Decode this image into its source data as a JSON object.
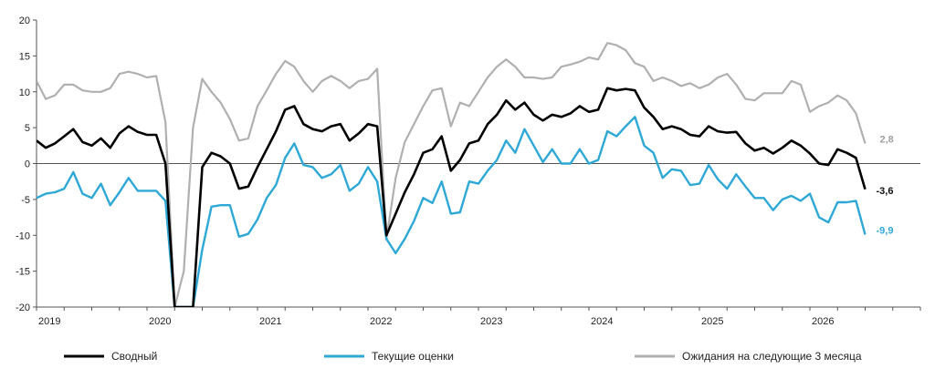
{
  "chart_data": {
    "type": "line",
    "title": "",
    "xlabel": "",
    "ylabel": "",
    "ylim": [
      -20,
      20
    ],
    "xlim": [
      "2019-01",
      "2026-12"
    ],
    "y_ticks": [
      "20",
      "15",
      "10",
      "5",
      "0",
      "-5",
      "-10",
      "-15",
      "-20"
    ],
    "x_ticks": [
      "2019",
      "2020",
      "2021",
      "2022",
      "2023",
      "2024",
      "2025",
      "2026"
    ],
    "grid": false,
    "legend_position": "bottom",
    "series": [
      {
        "name": "Сводный",
        "color": "#000000",
        "end_label": "-3,6",
        "points": [
          [
            "2019-01",
            3.2
          ],
          [
            "2019-02",
            2.2
          ],
          [
            "2019-03",
            2.8
          ],
          [
            "2019-04",
            3.8
          ],
          [
            "2019-05",
            4.8
          ],
          [
            "2019-06",
            3.0
          ],
          [
            "2019-07",
            2.5
          ],
          [
            "2019-08",
            3.5
          ],
          [
            "2019-09",
            2.2
          ],
          [
            "2019-10",
            4.2
          ],
          [
            "2019-11",
            5.2
          ],
          [
            "2019-12",
            4.4
          ],
          [
            "2020-01",
            4.0
          ],
          [
            "2020-02",
            4.0
          ],
          [
            "2020-03",
            0.0
          ],
          [
            "2020-04",
            -20
          ],
          [
            "2020-05",
            -20
          ],
          [
            "2020-06",
            -20
          ],
          [
            "2020-07",
            -0.5
          ],
          [
            "2020-08",
            1.5
          ],
          [
            "2020-09",
            1.0
          ],
          [
            "2020-10",
            0.0
          ],
          [
            "2020-11",
            -3.5
          ],
          [
            "2020-12",
            -3.2
          ],
          [
            "2021-01",
            -0.5
          ],
          [
            "2021-02",
            2.0
          ],
          [
            "2021-03",
            4.5
          ],
          [
            "2021-04",
            7.5
          ],
          [
            "2021-05",
            8.0
          ],
          [
            "2021-06",
            5.5
          ],
          [
            "2021-07",
            4.8
          ],
          [
            "2021-08",
            4.5
          ],
          [
            "2021-09",
            5.2
          ],
          [
            "2021-10",
            5.5
          ],
          [
            "2021-11",
            3.2
          ],
          [
            "2021-12",
            4.2
          ],
          [
            "2022-01",
            5.5
          ],
          [
            "2022-02",
            5.2
          ],
          [
            "2022-03",
            -10.0
          ],
          [
            "2022-04",
            -7.0
          ],
          [
            "2022-05",
            -4.0
          ],
          [
            "2022-06",
            -1.5
          ],
          [
            "2022-07",
            1.5
          ],
          [
            "2022-08",
            2.0
          ],
          [
            "2022-09",
            3.8
          ],
          [
            "2022-10",
            -1.0
          ],
          [
            "2022-11",
            0.5
          ],
          [
            "2022-12",
            2.8
          ],
          [
            "2023-01",
            3.2
          ],
          [
            "2023-02",
            5.5
          ],
          [
            "2023-03",
            6.8
          ],
          [
            "2023-04",
            8.8
          ],
          [
            "2023-05",
            7.5
          ],
          [
            "2023-06",
            8.5
          ],
          [
            "2023-07",
            6.8
          ],
          [
            "2023-08",
            6.0
          ],
          [
            "2023-09",
            6.8
          ],
          [
            "2023-10",
            6.5
          ],
          [
            "2023-11",
            7.0
          ],
          [
            "2023-12",
            8.0
          ],
          [
            "2024-01",
            7.2
          ],
          [
            "2024-02",
            7.5
          ],
          [
            "2024-03",
            10.5
          ],
          [
            "2024-04",
            10.2
          ],
          [
            "2024-05",
            10.4
          ],
          [
            "2024-06",
            10.2
          ],
          [
            "2024-07",
            7.8
          ],
          [
            "2024-08",
            6.5
          ],
          [
            "2024-09",
            4.8
          ],
          [
            "2024-10",
            5.2
          ],
          [
            "2024-11",
            4.8
          ],
          [
            "2024-12",
            4.0
          ],
          [
            "2025-01",
            3.8
          ],
          [
            "2025-02",
            5.2
          ],
          [
            "2025-03",
            4.5
          ],
          [
            "2025-04",
            4.3
          ],
          [
            "2025-05",
            4.4
          ],
          [
            "2025-06",
            2.8
          ],
          [
            "2025-07",
            1.8
          ],
          [
            "2025-08",
            2.2
          ],
          [
            "2025-09",
            1.4
          ],
          [
            "2025-10",
            2.2
          ],
          [
            "2025-11",
            3.2
          ],
          [
            "2025-12",
            2.5
          ],
          [
            "2026-01",
            1.4
          ],
          [
            "2026-02",
            0.0
          ],
          [
            "2026-03",
            -0.2
          ],
          [
            "2026-04",
            2.0
          ],
          [
            "2026-05",
            1.5
          ],
          [
            "2026-06",
            0.8
          ],
          [
            "2026-07",
            -3.6
          ]
        ]
      },
      {
        "name": "Текущие оценки",
        "color": "#2ea8d6",
        "end_label": "-9,9",
        "points": [
          [
            "2019-01",
            -4.8
          ],
          [
            "2019-02",
            -4.2
          ],
          [
            "2019-03",
            -4.0
          ],
          [
            "2019-04",
            -3.5
          ],
          [
            "2019-05",
            -1.2
          ],
          [
            "2019-06",
            -4.2
          ],
          [
            "2019-07",
            -4.8
          ],
          [
            "2019-08",
            -2.8
          ],
          [
            "2019-09",
            -5.8
          ],
          [
            "2019-10",
            -4.0
          ],
          [
            "2019-11",
            -2.0
          ],
          [
            "2019-12",
            -3.8
          ],
          [
            "2020-01",
            -3.8
          ],
          [
            "2020-02",
            -3.8
          ],
          [
            "2020-03",
            -5.2
          ],
          [
            "2020-04",
            -20
          ],
          [
            "2020-05",
            -20
          ],
          [
            "2020-06",
            -20
          ],
          [
            "2020-07",
            -12.0
          ],
          [
            "2020-08",
            -6.0
          ],
          [
            "2020-09",
            -5.8
          ],
          [
            "2020-10",
            -5.8
          ],
          [
            "2020-11",
            -10.2
          ],
          [
            "2020-12",
            -9.8
          ],
          [
            "2021-01",
            -7.8
          ],
          [
            "2021-02",
            -4.8
          ],
          [
            "2021-03",
            -3.0
          ],
          [
            "2021-04",
            0.8
          ],
          [
            "2021-05",
            2.8
          ],
          [
            "2021-06",
            -0.2
          ],
          [
            "2021-07",
            -0.5
          ],
          [
            "2021-08",
            -2.0
          ],
          [
            "2021-09",
            -1.5
          ],
          [
            "2021-10",
            -0.2
          ],
          [
            "2021-11",
            -3.8
          ],
          [
            "2021-12",
            -2.8
          ],
          [
            "2022-01",
            -0.5
          ],
          [
            "2022-02",
            -2.5
          ],
          [
            "2022-03",
            -10.5
          ],
          [
            "2022-04",
            -12.5
          ],
          [
            "2022-05",
            -10.5
          ],
          [
            "2022-06",
            -8.0
          ],
          [
            "2022-07",
            -4.8
          ],
          [
            "2022-08",
            -5.5
          ],
          [
            "2022-09",
            -2.5
          ],
          [
            "2022-10",
            -7.0
          ],
          [
            "2022-11",
            -6.8
          ],
          [
            "2022-12",
            -2.5
          ],
          [
            "2023-01",
            -2.8
          ],
          [
            "2023-02",
            -1.0
          ],
          [
            "2023-03",
            0.5
          ],
          [
            "2023-04",
            3.2
          ],
          [
            "2023-05",
            1.5
          ],
          [
            "2023-06",
            4.8
          ],
          [
            "2023-07",
            2.5
          ],
          [
            "2023-08",
            0.2
          ],
          [
            "2023-09",
            2.0
          ],
          [
            "2023-10",
            0.0
          ],
          [
            "2023-11",
            0.0
          ],
          [
            "2023-12",
            2.0
          ],
          [
            "2024-01",
            0.0
          ],
          [
            "2024-02",
            0.5
          ],
          [
            "2024-03",
            4.5
          ],
          [
            "2024-04",
            3.8
          ],
          [
            "2024-05",
            5.2
          ],
          [
            "2024-06",
            6.5
          ],
          [
            "2024-07",
            2.5
          ],
          [
            "2024-08",
            1.5
          ],
          [
            "2024-09",
            -2.0
          ],
          [
            "2024-10",
            -0.8
          ],
          [
            "2024-11",
            -1.0
          ],
          [
            "2024-12",
            -3.0
          ],
          [
            "2025-01",
            -2.8
          ],
          [
            "2025-02",
            -0.2
          ],
          [
            "2025-03",
            -2.2
          ],
          [
            "2025-04",
            -3.5
          ],
          [
            "2025-05",
            -1.5
          ],
          [
            "2025-06",
            -3.2
          ],
          [
            "2025-07",
            -4.8
          ],
          [
            "2025-08",
            -4.8
          ],
          [
            "2025-09",
            -6.5
          ],
          [
            "2025-10",
            -5.0
          ],
          [
            "2025-11",
            -4.5
          ],
          [
            "2025-12",
            -5.2
          ],
          [
            "2026-01",
            -4.2
          ],
          [
            "2026-02",
            -7.5
          ],
          [
            "2026-03",
            -8.2
          ],
          [
            "2026-04",
            -5.4
          ],
          [
            "2026-05",
            -5.4
          ],
          [
            "2026-06",
            -5.2
          ],
          [
            "2026-07",
            -9.9
          ]
        ]
      },
      {
        "name": "Ожидания на следующие 3 месяца",
        "color": "#b0b0b0",
        "end_label": "2,8",
        "points": [
          [
            "2019-01",
            11.5
          ],
          [
            "2019-02",
            9.0
          ],
          [
            "2019-03",
            9.5
          ],
          [
            "2019-04",
            11.0
          ],
          [
            "2019-05",
            11.0
          ],
          [
            "2019-06",
            10.2
          ],
          [
            "2019-07",
            10.0
          ],
          [
            "2019-08",
            10.0
          ],
          [
            "2019-09",
            10.5
          ],
          [
            "2019-10",
            12.5
          ],
          [
            "2019-11",
            12.8
          ],
          [
            "2019-12",
            12.5
          ],
          [
            "2020-01",
            12.0
          ],
          [
            "2020-02",
            12.2
          ],
          [
            "2020-03",
            5.8
          ],
          [
            "2020-04",
            -20
          ],
          [
            "2020-05",
            -15.0
          ],
          [
            "2020-06",
            5.0
          ],
          [
            "2020-07",
            11.8
          ],
          [
            "2020-08",
            10.0
          ],
          [
            "2020-09",
            8.5
          ],
          [
            "2020-10",
            6.2
          ],
          [
            "2020-11",
            3.2
          ],
          [
            "2020-12",
            3.5
          ],
          [
            "2021-01",
            8.0
          ],
          [
            "2021-02",
            10.2
          ],
          [
            "2021-03",
            12.5
          ],
          [
            "2021-04",
            14.3
          ],
          [
            "2021-05",
            13.5
          ],
          [
            "2021-06",
            11.5
          ],
          [
            "2021-07",
            10.0
          ],
          [
            "2021-08",
            11.5
          ],
          [
            "2021-09",
            12.2
          ],
          [
            "2021-10",
            11.5
          ],
          [
            "2021-11",
            10.5
          ],
          [
            "2021-12",
            11.5
          ],
          [
            "2022-01",
            11.8
          ],
          [
            "2022-02",
            13.2
          ],
          [
            "2022-03",
            -10.5
          ],
          [
            "2022-04",
            -2.0
          ],
          [
            "2022-05",
            3.0
          ],
          [
            "2022-06",
            5.5
          ],
          [
            "2022-07",
            8.0
          ],
          [
            "2022-08",
            10.2
          ],
          [
            "2022-09",
            10.5
          ],
          [
            "2022-10",
            5.2
          ],
          [
            "2022-11",
            8.5
          ],
          [
            "2022-12",
            8.0
          ],
          [
            "2023-01",
            10.0
          ],
          [
            "2023-02",
            12.0
          ],
          [
            "2023-03",
            13.5
          ],
          [
            "2023-04",
            14.5
          ],
          [
            "2023-05",
            13.5
          ],
          [
            "2023-06",
            12.0
          ],
          [
            "2023-07",
            12.0
          ],
          [
            "2023-08",
            11.8
          ],
          [
            "2023-09",
            12.0
          ],
          [
            "2023-10",
            13.5
          ],
          [
            "2023-11",
            13.8
          ],
          [
            "2023-12",
            14.2
          ],
          [
            "2024-01",
            14.8
          ],
          [
            "2024-02",
            14.5
          ],
          [
            "2024-03",
            16.8
          ],
          [
            "2024-04",
            16.5
          ],
          [
            "2024-05",
            15.8
          ],
          [
            "2024-06",
            14.0
          ],
          [
            "2024-07",
            13.5
          ],
          [
            "2024-08",
            11.5
          ],
          [
            "2024-09",
            12.0
          ],
          [
            "2024-10",
            11.5
          ],
          [
            "2024-11",
            10.8
          ],
          [
            "2024-12",
            11.2
          ],
          [
            "2025-01",
            10.5
          ],
          [
            "2025-02",
            11.0
          ],
          [
            "2025-03",
            12.0
          ],
          [
            "2025-04",
            12.5
          ],
          [
            "2025-05",
            11.0
          ],
          [
            "2025-06",
            9.0
          ],
          [
            "2025-07",
            8.8
          ],
          [
            "2025-08",
            9.8
          ],
          [
            "2025-09",
            9.8
          ],
          [
            "2025-10",
            9.8
          ],
          [
            "2025-11",
            11.5
          ],
          [
            "2025-12",
            11.0
          ],
          [
            "2026-01",
            7.2
          ],
          [
            "2026-02",
            8.0
          ],
          [
            "2026-03",
            8.5
          ],
          [
            "2026-04",
            9.5
          ],
          [
            "2026-05",
            8.8
          ],
          [
            "2026-06",
            7.0
          ],
          [
            "2026-07",
            2.8
          ]
        ]
      }
    ]
  }
}
